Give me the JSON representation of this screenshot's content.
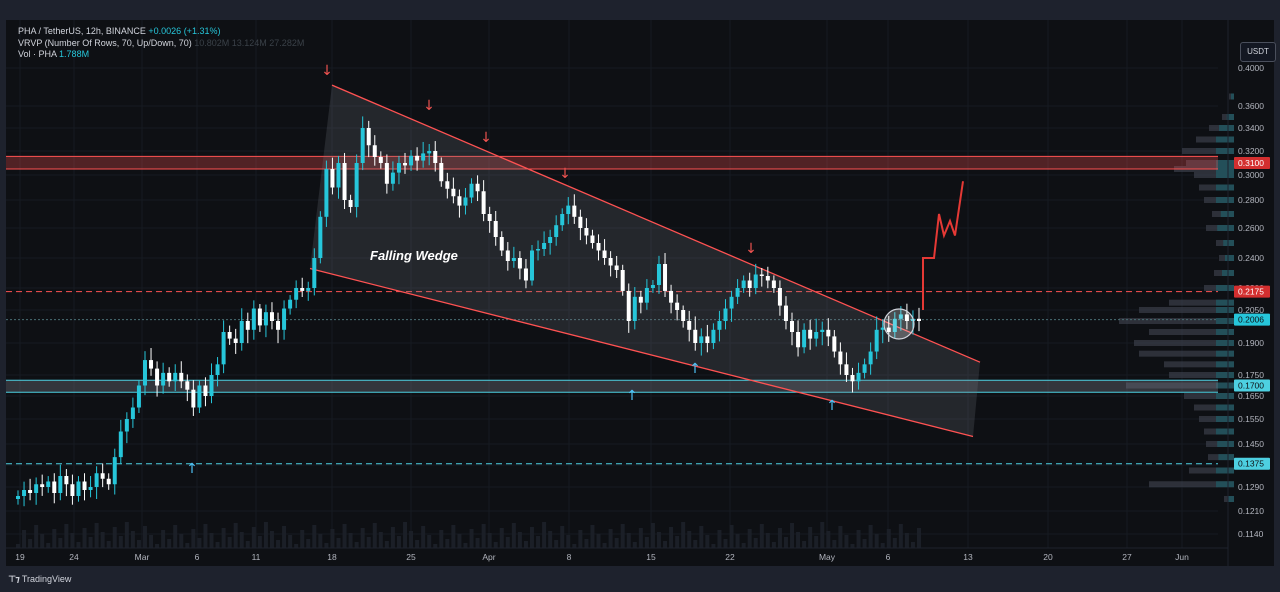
{
  "legend": {
    "line1_symbol": "PHA / TetherUS, 12h, BINANCE",
    "line1_change": "+0.0026 (+1.31%)",
    "line2_label": "VRVP (Number Of Rows, 70, Up/Down, 70)",
    "line2_values": "10.802M  13.124M  27.282M",
    "line3_label": "Vol · PHA",
    "line3_value": "1.788M"
  },
  "toolbar": {
    "currency_button": "USDT"
  },
  "footer": {
    "brand": "TradingView",
    "brand_icon": "tradingview-logo-icon"
  },
  "colors": {
    "background": "#0e1014",
    "up": "#26c6da",
    "down": "#ffffff",
    "resistance": "#ff5252",
    "support": "#4dd0e1",
    "wedge_fill": "#787b86",
    "volume_profile": "#434651"
  },
  "chart_data": {
    "type": "candlestick",
    "timeframe": "12h",
    "price_scale_ticks": [
      "0.4000",
      "0.3600",
      "0.3400",
      "0.3200",
      "0.3000",
      "0.2800",
      "0.2600",
      "0.2400",
      "0.2200",
      "0.2050",
      "0.1900",
      "0.1750",
      "0.1650",
      "0.1550",
      "0.1450",
      "0.1370",
      "0.1290",
      "0.1210",
      "0.1140"
    ],
    "time_axis_ticks": [
      "19",
      "24",
      "Mar",
      "6",
      "11",
      "18",
      "25",
      "Apr",
      "8",
      "15",
      "22",
      "May",
      "6",
      "13",
      "20",
      "27",
      "Jun"
    ],
    "price_labels": [
      {
        "value": "0.3100",
        "kind": "resistance"
      },
      {
        "value": "0.2175",
        "kind": "resistance"
      },
      {
        "value": "0.2006",
        "kind": "current"
      },
      {
        "value": "0.1700",
        "kind": "support"
      },
      {
        "value": "0.1375",
        "kind": "support"
      }
    ],
    "zones": [
      {
        "name": "resistance-zone",
        "from": 0.305,
        "to": 0.3155
      },
      {
        "name": "support-zone",
        "from": 0.1668,
        "to": 0.1725
      }
    ],
    "lines": [
      {
        "name": "resistance-dashed-line",
        "price": 0.2175,
        "style": "dashed"
      },
      {
        "name": "support-dashed-line",
        "price": 0.1375,
        "style": "dashed"
      },
      {
        "name": "current-price-line",
        "price": 0.2006,
        "style": "dotted"
      }
    ],
    "pattern_label": "Falling Wedge",
    "wedge": {
      "upper": [
        [
          "Feb 17",
          0.382
        ],
        [
          "May 14",
          0.181
        ]
      ],
      "lower": [
        [
          "Feb 15",
          0.233
        ],
        [
          "May 13",
          0.148
        ]
      ]
    },
    "projection": [
      0.205,
      0.24,
      0.24,
      0.24,
      0.27,
      0.255,
      0.265,
      0.255,
      0.295
    ]
  }
}
